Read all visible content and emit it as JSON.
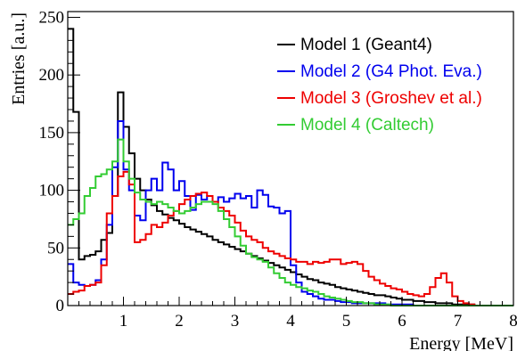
{
  "chart_data": {
    "type": "line",
    "style": "step-histogram",
    "title": "",
    "xlabel": "Energy [MeV]",
    "ylabel": "Entries [a.u.]",
    "xlim": [
      0,
      8
    ],
    "ylim": [
      0,
      255
    ],
    "xticks": [
      "1",
      "2",
      "3",
      "4",
      "5",
      "6",
      "7",
      "8"
    ],
    "yticks": [
      "0",
      "50",
      "100",
      "150",
      "200",
      "250"
    ],
    "grid": false,
    "legend_position": "top-right",
    "bin_width": 0.1,
    "series": [
      {
        "name": "Model 1 (Geant4)",
        "color": "#000000",
        "values": [
          240,
          168,
          40,
          43,
          44,
          47,
          57,
          63,
          95,
          185,
          155,
          132,
          110,
          100,
          92,
          87,
          82,
          79,
          76,
          74,
          71,
          68,
          66,
          64,
          62,
          60,
          57,
          55,
          53,
          51,
          49,
          47,
          45,
          43,
          41,
          39,
          37,
          35,
          33,
          31,
          29,
          27,
          25,
          23,
          22,
          20,
          19,
          18,
          16,
          15,
          14,
          13,
          12,
          11,
          10,
          9,
          9,
          8,
          7,
          6,
          5,
          5,
          4,
          4,
          3,
          3,
          2,
          2,
          2,
          1,
          1,
          1,
          1,
          0,
          0,
          0,
          0,
          0,
          0,
          0
        ]
      },
      {
        "name": "Model 2 (G4 Phot. Eva.)",
        "color": "#0000ee",
        "values": [
          36,
          20,
          18,
          17,
          18,
          22,
          40,
          70,
          120,
          160,
          118,
          100,
          78,
          74,
          100,
          110,
          100,
          124,
          118,
          100,
          108,
          95,
          83,
          96,
          92,
          95,
          90,
          94,
          90,
          93,
          97,
          93,
          95,
          85,
          100,
          96,
          86,
          85,
          80,
          82,
          35,
          20,
          12,
          10,
          8,
          6,
          5,
          5,
          4,
          3,
          3,
          2,
          2,
          2,
          2,
          2,
          2,
          1,
          1,
          1,
          1,
          1,
          0,
          0,
          0,
          0,
          0,
          0,
          0,
          0,
          0,
          0,
          0,
          0,
          0,
          0,
          0,
          0,
          0,
          0
        ]
      },
      {
        "name": "Model 3 (Groshev et al.)",
        "color": "#ee0000",
        "values": [
          10,
          12,
          13,
          17,
          18,
          20,
          35,
          80,
          95,
          112,
          116,
          105,
          55,
          57,
          62,
          70,
          68,
          72,
          78,
          82,
          88,
          92,
          95,
          97,
          98,
          95,
          90,
          85,
          82,
          78,
          72,
          65,
          60,
          57,
          55,
          50,
          47,
          45,
          43,
          41,
          40,
          38,
          38,
          36,
          38,
          37,
          38,
          40,
          40,
          36,
          37,
          38,
          36,
          30,
          25,
          22,
          19,
          17,
          15,
          14,
          12,
          10,
          9,
          8,
          10,
          16,
          24,
          28,
          20,
          8,
          4,
          2,
          1,
          0,
          0,
          0,
          0,
          0,
          0,
          0
        ]
      },
      {
        "name": "Model 4 (Caltech)",
        "color": "#33cc33",
        "values": [
          70,
          75,
          80,
          95,
          102,
          112,
          114,
          118,
          125,
          144,
          125,
          110,
          98,
          92,
          90,
          88,
          90,
          88,
          85,
          82,
          80,
          82,
          85,
          88,
          90,
          90,
          88,
          82,
          75,
          68,
          60,
          52,
          45,
          42,
          40,
          38,
          33,
          28,
          24,
          20,
          18,
          16,
          15,
          13,
          12,
          10,
          8,
          7,
          6,
          5,
          4,
          3,
          3,
          2,
          2,
          1,
          1,
          1,
          0,
          0,
          0,
          0,
          0,
          0,
          0,
          0,
          0,
          0,
          0,
          0,
          0,
          0,
          0,
          0,
          0,
          0,
          0,
          0,
          0,
          0
        ]
      }
    ]
  }
}
